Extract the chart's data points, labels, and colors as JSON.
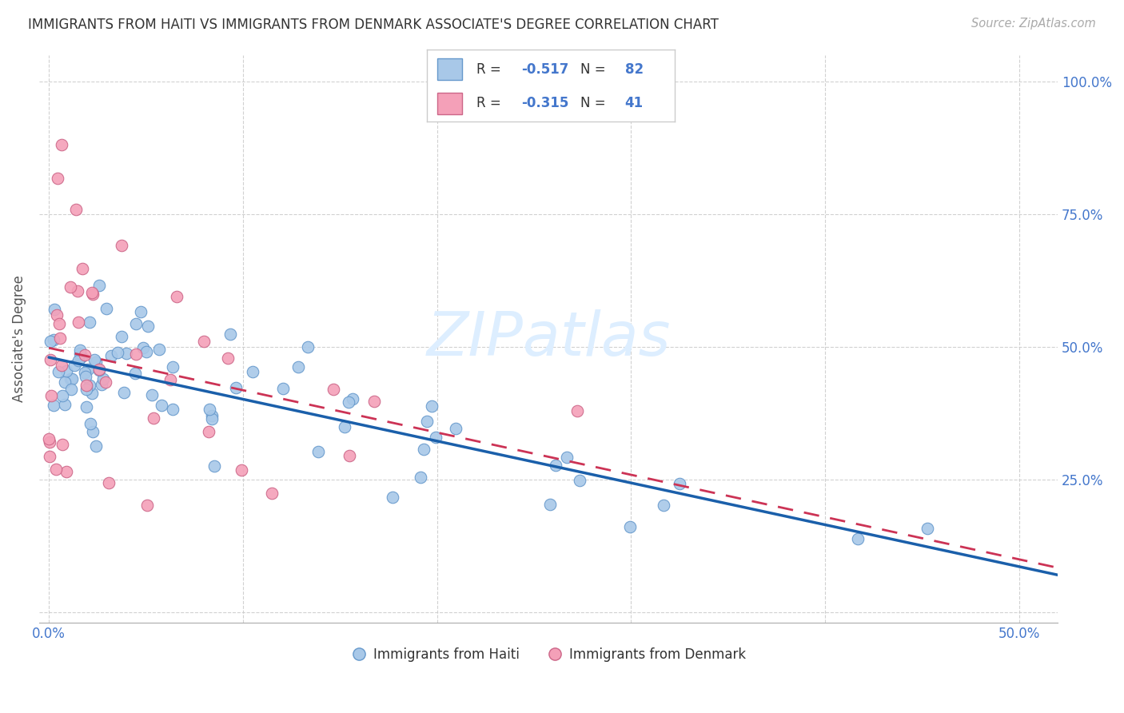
{
  "title": "IMMIGRANTS FROM HAITI VS IMMIGRANTS FROM DENMARK ASSOCIATE'S DEGREE CORRELATION CHART",
  "source": "Source: ZipAtlas.com",
  "ylabel_label": "Associate's Degree",
  "xlim": [
    -0.005,
    0.52
  ],
  "ylim": [
    -0.02,
    1.05
  ],
  "haiti_color": "#a8c8e8",
  "haiti_edge": "#6699cc",
  "denmark_color": "#f4a0b8",
  "denmark_edge": "#cc6688",
  "trend_haiti_color": "#1a5faa",
  "trend_denmark_color": "#cc3355",
  "bg_color": "#ffffff",
  "grid_color": "#cccccc",
  "tick_color": "#4477cc",
  "R_haiti": -0.517,
  "N_haiti": 82,
  "R_denmark": -0.315,
  "N_denmark": 41,
  "watermark_color": "#ddeeff",
  "source_color": "#aaaaaa",
  "title_color": "#333333"
}
